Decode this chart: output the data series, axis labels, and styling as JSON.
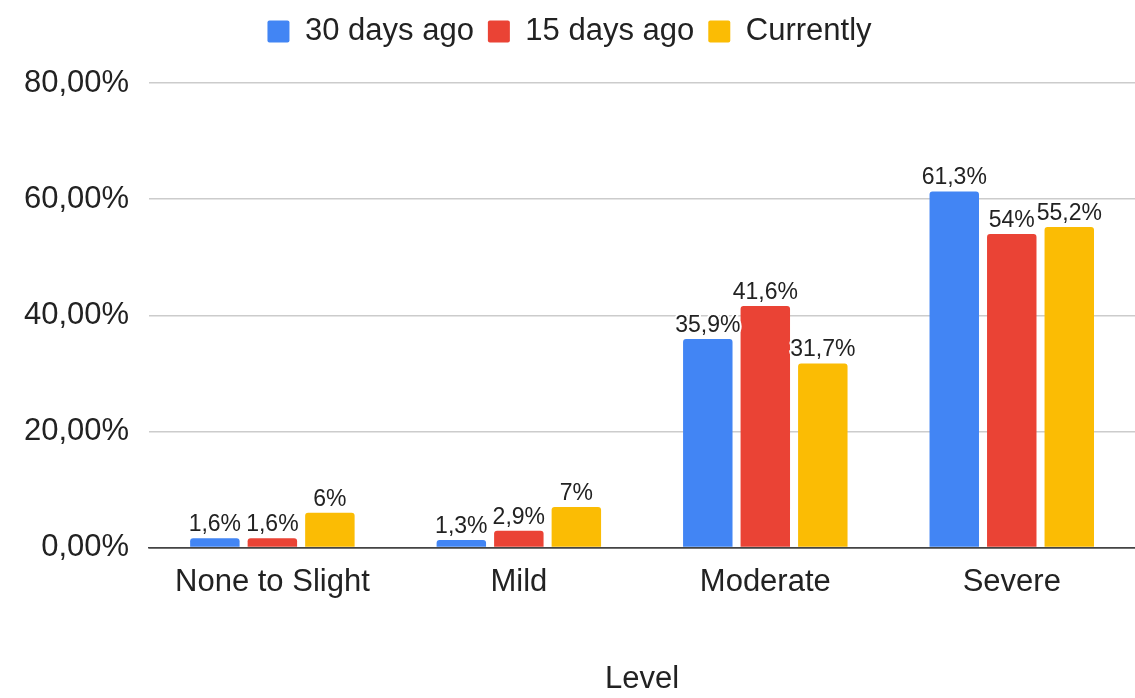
{
  "chart_data": {
    "type": "bar",
    "xlabel": "Level",
    "categories": [
      "None to Slight",
      "Mild",
      "Moderate",
      "Severe"
    ],
    "series": [
      {
        "name": "30 days ago",
        "color": "#4285f4",
        "values": [
          1.6,
          1.3,
          35.9,
          61.3
        ],
        "value_labels": [
          "1,6%",
          "1,3%",
          "35,9%",
          "61,3%"
        ]
      },
      {
        "name": "15 days ago",
        "color": "#ea4335",
        "values": [
          1.6,
          2.9,
          41.6,
          54
        ],
        "value_labels": [
          "1,6%",
          "2,9%",
          "41,6%",
          "54%"
        ]
      },
      {
        "name": "Currently",
        "color": "#fbbc04",
        "values": [
          6,
          7,
          31.7,
          55.2
        ],
        "value_labels": [
          "6%",
          "7%",
          "31,7%",
          "55,2%"
        ]
      }
    ],
    "ylim": [
      0,
      80
    ],
    "yticks": [
      {
        "value": 0,
        "label": "0,00%"
      },
      {
        "value": 20,
        "label": "20,00%"
      },
      {
        "value": 40,
        "label": "40,00%"
      },
      {
        "value": 60,
        "label": "60,00%"
      },
      {
        "value": 80,
        "label": "80,00%"
      }
    ],
    "grid": "y",
    "legend": "top"
  }
}
